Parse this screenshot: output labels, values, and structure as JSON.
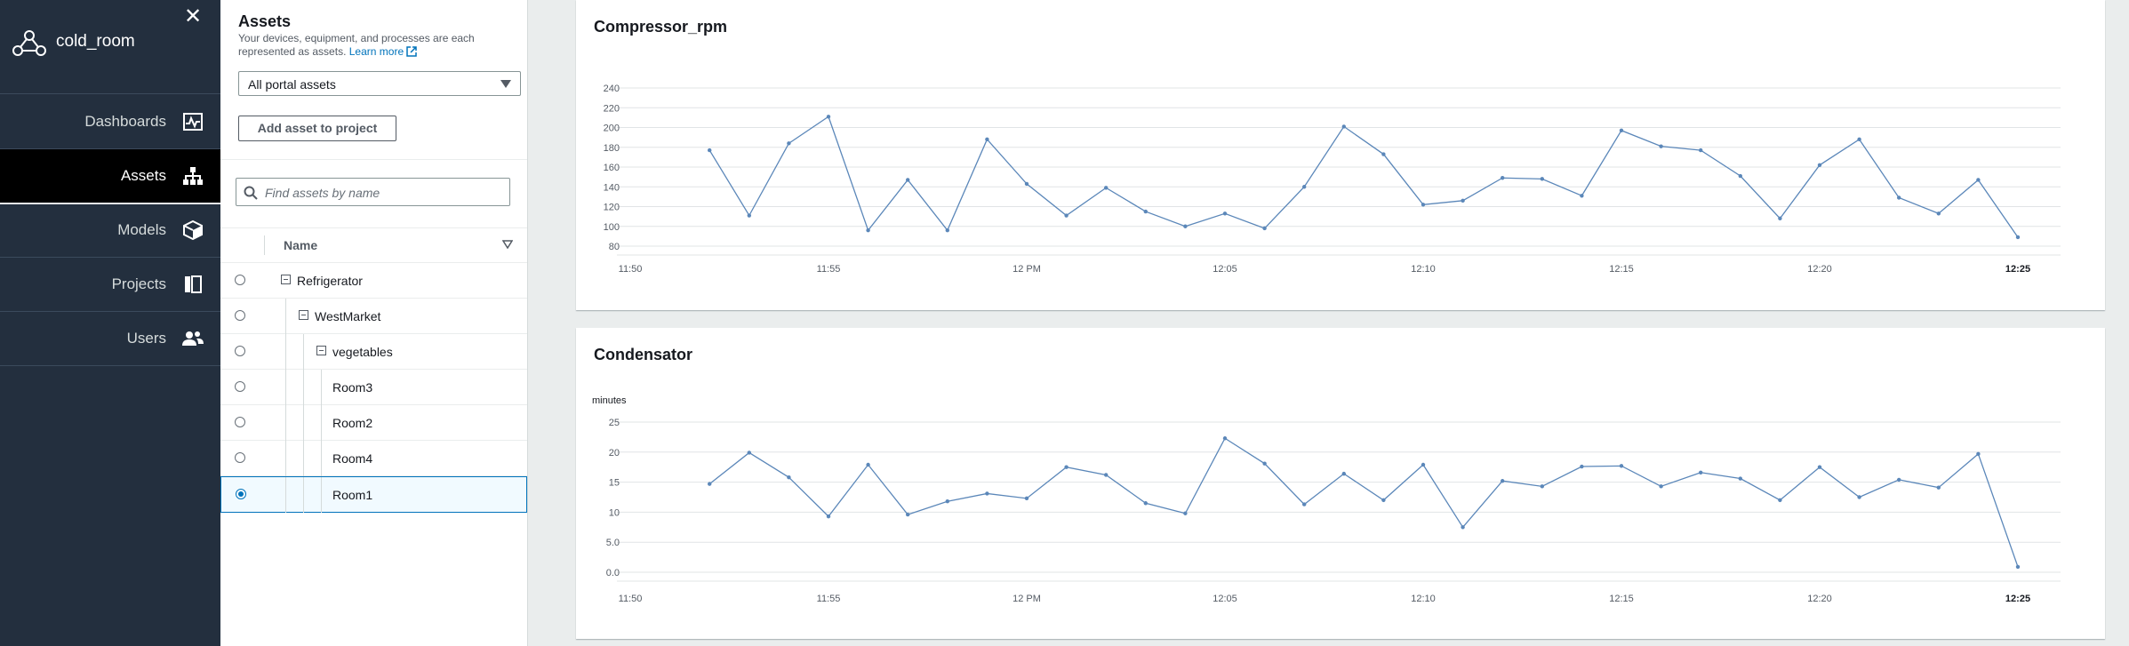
{
  "nav": {
    "close_glyph": "✕",
    "app_name": "cold_room",
    "items": [
      {
        "label": "Dashboards",
        "icon": "dashboard-icon",
        "active": false
      },
      {
        "label": "Assets",
        "icon": "hierarchy-icon",
        "active": true
      },
      {
        "label": "Models",
        "icon": "cube-icon",
        "active": false
      },
      {
        "label": "Projects",
        "icon": "projects-icon",
        "active": false
      },
      {
        "label": "Users",
        "icon": "users-icon",
        "active": false
      }
    ]
  },
  "assets": {
    "title": "Assets",
    "description": "Your devices, equipment, and processes are each represented as assets.",
    "learn_more": "Learn more",
    "filter_select": "All portal assets",
    "add_button": "Add asset to project",
    "search_placeholder": "Find assets by name",
    "column_header": "Name",
    "tree": [
      {
        "name": "Refrigerator",
        "level": 0,
        "expandable": true,
        "selected": false
      },
      {
        "name": "WestMarket",
        "level": 1,
        "expandable": true,
        "selected": false
      },
      {
        "name": "vegetables",
        "level": 2,
        "expandable": true,
        "selected": false
      },
      {
        "name": "Room3",
        "level": 3,
        "expandable": false,
        "selected": false
      },
      {
        "name": "Room2",
        "level": 3,
        "expandable": false,
        "selected": false
      },
      {
        "name": "Room4",
        "level": 3,
        "expandable": false,
        "selected": false
      },
      {
        "name": "Room1",
        "level": 3,
        "expandable": false,
        "selected": true
      }
    ]
  },
  "colors": {
    "nav_bg": "#232f3e",
    "line": "#5b87b9",
    "accent": "#0073bb"
  },
  "chart_data": [
    {
      "type": "line",
      "title": "Compressor_rpm",
      "ylabel": "",
      "x_ticks": [
        "11:50",
        "11:55",
        "12 PM",
        "12:05",
        "12:10",
        "12:15",
        "12:20",
        "12:25"
      ],
      "y_ticks": [
        "80",
        "100",
        "120",
        "140",
        "160",
        "180",
        "200",
        "220",
        "240"
      ],
      "ylim": [
        80,
        240
      ],
      "grid": true,
      "x_start": "11:52",
      "x_interval_minutes": 1,
      "values": [
        177,
        111,
        184,
        211,
        96,
        147,
        96,
        188,
        143,
        111,
        139,
        115,
        100,
        113,
        98,
        140,
        201,
        173,
        122,
        126,
        149,
        148,
        131,
        197,
        181,
        177,
        151,
        108,
        162,
        188,
        129,
        113,
        147,
        89
      ]
    },
    {
      "type": "line",
      "title": "Condensator",
      "ylabel": "minutes",
      "x_ticks": [
        "11:50",
        "11:55",
        "12 PM",
        "12:05",
        "12:10",
        "12:15",
        "12:20",
        "12:25"
      ],
      "y_ticks": [
        "0.0",
        "5.0",
        "10",
        "15",
        "20",
        "25"
      ],
      "ylim": [
        0,
        25
      ],
      "grid": true,
      "x_start": "11:52",
      "x_interval_minutes": 1,
      "values": [
        14.7,
        19.9,
        15.8,
        9.3,
        17.9,
        9.6,
        11.8,
        13.1,
        12.3,
        17.5,
        16.2,
        11.5,
        9.8,
        22.3,
        18.1,
        11.3,
        16.4,
        12.0,
        17.9,
        7.5,
        15.2,
        14.3,
        17.6,
        17.7,
        14.3,
        16.6,
        15.6,
        12.0,
        17.5,
        12.5,
        15.4,
        14.1,
        19.7,
        0.9
      ]
    }
  ]
}
